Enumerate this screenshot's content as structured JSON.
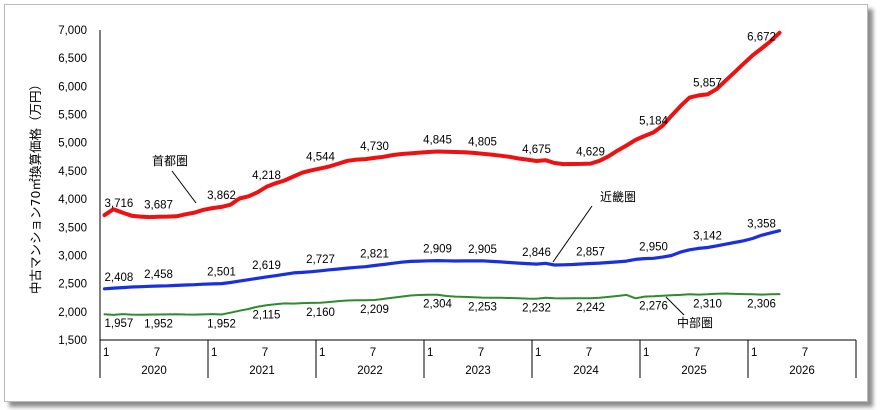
{
  "chart_data": {
    "type": "line",
    "ylabel": "中古マンション70㎡換算価格（万円）",
    "ylim": [
      1500,
      7000
    ],
    "yticks": [
      1500,
      2000,
      2500,
      3000,
      3500,
      4000,
      4500,
      5000,
      5500,
      6000,
      6500,
      7000
    ],
    "ytick_labels": [
      "1,500",
      "2,000",
      "2,500",
      "3,000",
      "3,500",
      "4,000",
      "4,500",
      "5,000",
      "5,500",
      "6,000",
      "6,500",
      "7,000"
    ],
    "x_start": {
      "year": 2020,
      "month": 1
    },
    "x_end": {
      "year": 2027,
      "month": 1
    },
    "month_ticks": [
      "1",
      "7"
    ],
    "years": [
      "2020",
      "2021",
      "2022",
      "2023",
      "2024",
      "2025",
      "2026"
    ],
    "series": [
      {
        "name": "首都圏",
        "color": "#ee1111",
        "values": [
          3716,
          3820,
          3760,
          3705,
          3690,
          3680,
          3687,
          3690,
          3695,
          3730,
          3760,
          3810,
          3840,
          3862,
          3900,
          4010,
          4050,
          4120,
          4218,
          4280,
          4330,
          4400,
          4470,
          4510,
          4544,
          4580,
          4630,
          4680,
          4700,
          4710,
          4730,
          4750,
          4780,
          4800,
          4810,
          4825,
          4835,
          4845,
          4840,
          4835,
          4830,
          4820,
          4805,
          4790,
          4770,
          4750,
          4720,
          4700,
          4675,
          4690,
          4640,
          4620,
          4622,
          4624,
          4629,
          4680,
          4760,
          4860,
          4950,
          5050,
          5120,
          5184,
          5300,
          5480,
          5650,
          5800,
          5840,
          5857,
          5950,
          6100,
          6250,
          6400,
          6550,
          6672,
          6800,
          6950
        ],
        "labels": [
          {
            "index": 0,
            "text": "3,716"
          },
          {
            "index": 6,
            "text": "3,687"
          },
          {
            "index": 13,
            "text": "3,862"
          },
          {
            "index": 18,
            "text": "4,218"
          },
          {
            "index": 24,
            "text": "4,544"
          },
          {
            "index": 30,
            "text": "4,730"
          },
          {
            "index": 37,
            "text": "4,845"
          },
          {
            "index": 42,
            "text": "4,805"
          },
          {
            "index": 48,
            "text": "4,675"
          },
          {
            "index": 54,
            "text": "4,629"
          },
          {
            "index": 61,
            "text": "5,184"
          },
          {
            "index": 67,
            "text": "5,857"
          },
          {
            "index": 73,
            "text": "6,672"
          }
        ],
        "region_label": "首都圏"
      },
      {
        "name": "近畿圏",
        "color": "#1a2fe0",
        "values": [
          2408,
          2420,
          2430,
          2440,
          2445,
          2452,
          2458,
          2462,
          2468,
          2475,
          2482,
          2490,
          2495,
          2501,
          2520,
          2545,
          2570,
          2595,
          2619,
          2640,
          2665,
          2690,
          2700,
          2712,
          2727,
          2745,
          2760,
          2775,
          2790,
          2800,
          2821,
          2840,
          2860,
          2880,
          2895,
          2900,
          2905,
          2909,
          2905,
          2902,
          2903,
          2904,
          2905,
          2895,
          2885,
          2875,
          2865,
          2855,
          2846,
          2860,
          2830,
          2835,
          2840,
          2848,
          2857,
          2865,
          2875,
          2885,
          2900,
          2930,
          2945,
          2950,
          2970,
          3000,
          3060,
          3100,
          3125,
          3142,
          3170,
          3200,
          3230,
          3260,
          3300,
          3358,
          3400,
          3440
        ],
        "labels": [
          {
            "index": 0,
            "text": "2,408"
          },
          {
            "index": 6,
            "text": "2,458"
          },
          {
            "index": 13,
            "text": "2,501"
          },
          {
            "index": 18,
            "text": "2,619"
          },
          {
            "index": 24,
            "text": "2,727"
          },
          {
            "index": 30,
            "text": "2,821"
          },
          {
            "index": 37,
            "text": "2,909"
          },
          {
            "index": 42,
            "text": "2,905"
          },
          {
            "index": 48,
            "text": "2,846"
          },
          {
            "index": 54,
            "text": "2,857"
          },
          {
            "index": 61,
            "text": "2,950"
          },
          {
            "index": 67,
            "text": "3,142"
          },
          {
            "index": 73,
            "text": "3,358"
          }
        ],
        "region_label": "近畿圏"
      },
      {
        "name": "中部圏",
        "color": "#2e8b2e",
        "values": [
          1957,
          1945,
          1960,
          1950,
          1948,
          1950,
          1952,
          1955,
          1958,
          1952,
          1950,
          1955,
          1960,
          1952,
          1985,
          2020,
          2050,
          2090,
          2115,
          2135,
          2150,
          2145,
          2155,
          2158,
          2160,
          2175,
          2190,
          2200,
          2205,
          2207,
          2209,
          2230,
          2250,
          2270,
          2290,
          2298,
          2302,
          2304,
          2280,
          2270,
          2265,
          2258,
          2253,
          2250,
          2248,
          2245,
          2240,
          2235,
          2232,
          2250,
          2240,
          2238,
          2240,
          2241,
          2242,
          2250,
          2265,
          2280,
          2300,
          2240,
          2270,
          2276,
          2285,
          2295,
          2300,
          2310,
          2305,
          2310,
          2320,
          2325,
          2318,
          2315,
          2310,
          2306,
          2310,
          2315
        ],
        "labels": [
          {
            "index": 0,
            "text": "1,957"
          },
          {
            "index": 6,
            "text": "1,952"
          },
          {
            "index": 13,
            "text": "1,952"
          },
          {
            "index": 18,
            "text": "2,115"
          },
          {
            "index": 24,
            "text": "2,160"
          },
          {
            "index": 30,
            "text": "2,209"
          },
          {
            "index": 37,
            "text": "2,304"
          },
          {
            "index": 42,
            "text": "2,253"
          },
          {
            "index": 48,
            "text": "2,232"
          },
          {
            "index": 54,
            "text": "2,242"
          },
          {
            "index": 61,
            "text": "2,276"
          },
          {
            "index": 67,
            "text": "2,310"
          },
          {
            "index": 73,
            "text": "2,306"
          }
        ],
        "region_label": "中部圏"
      }
    ]
  }
}
